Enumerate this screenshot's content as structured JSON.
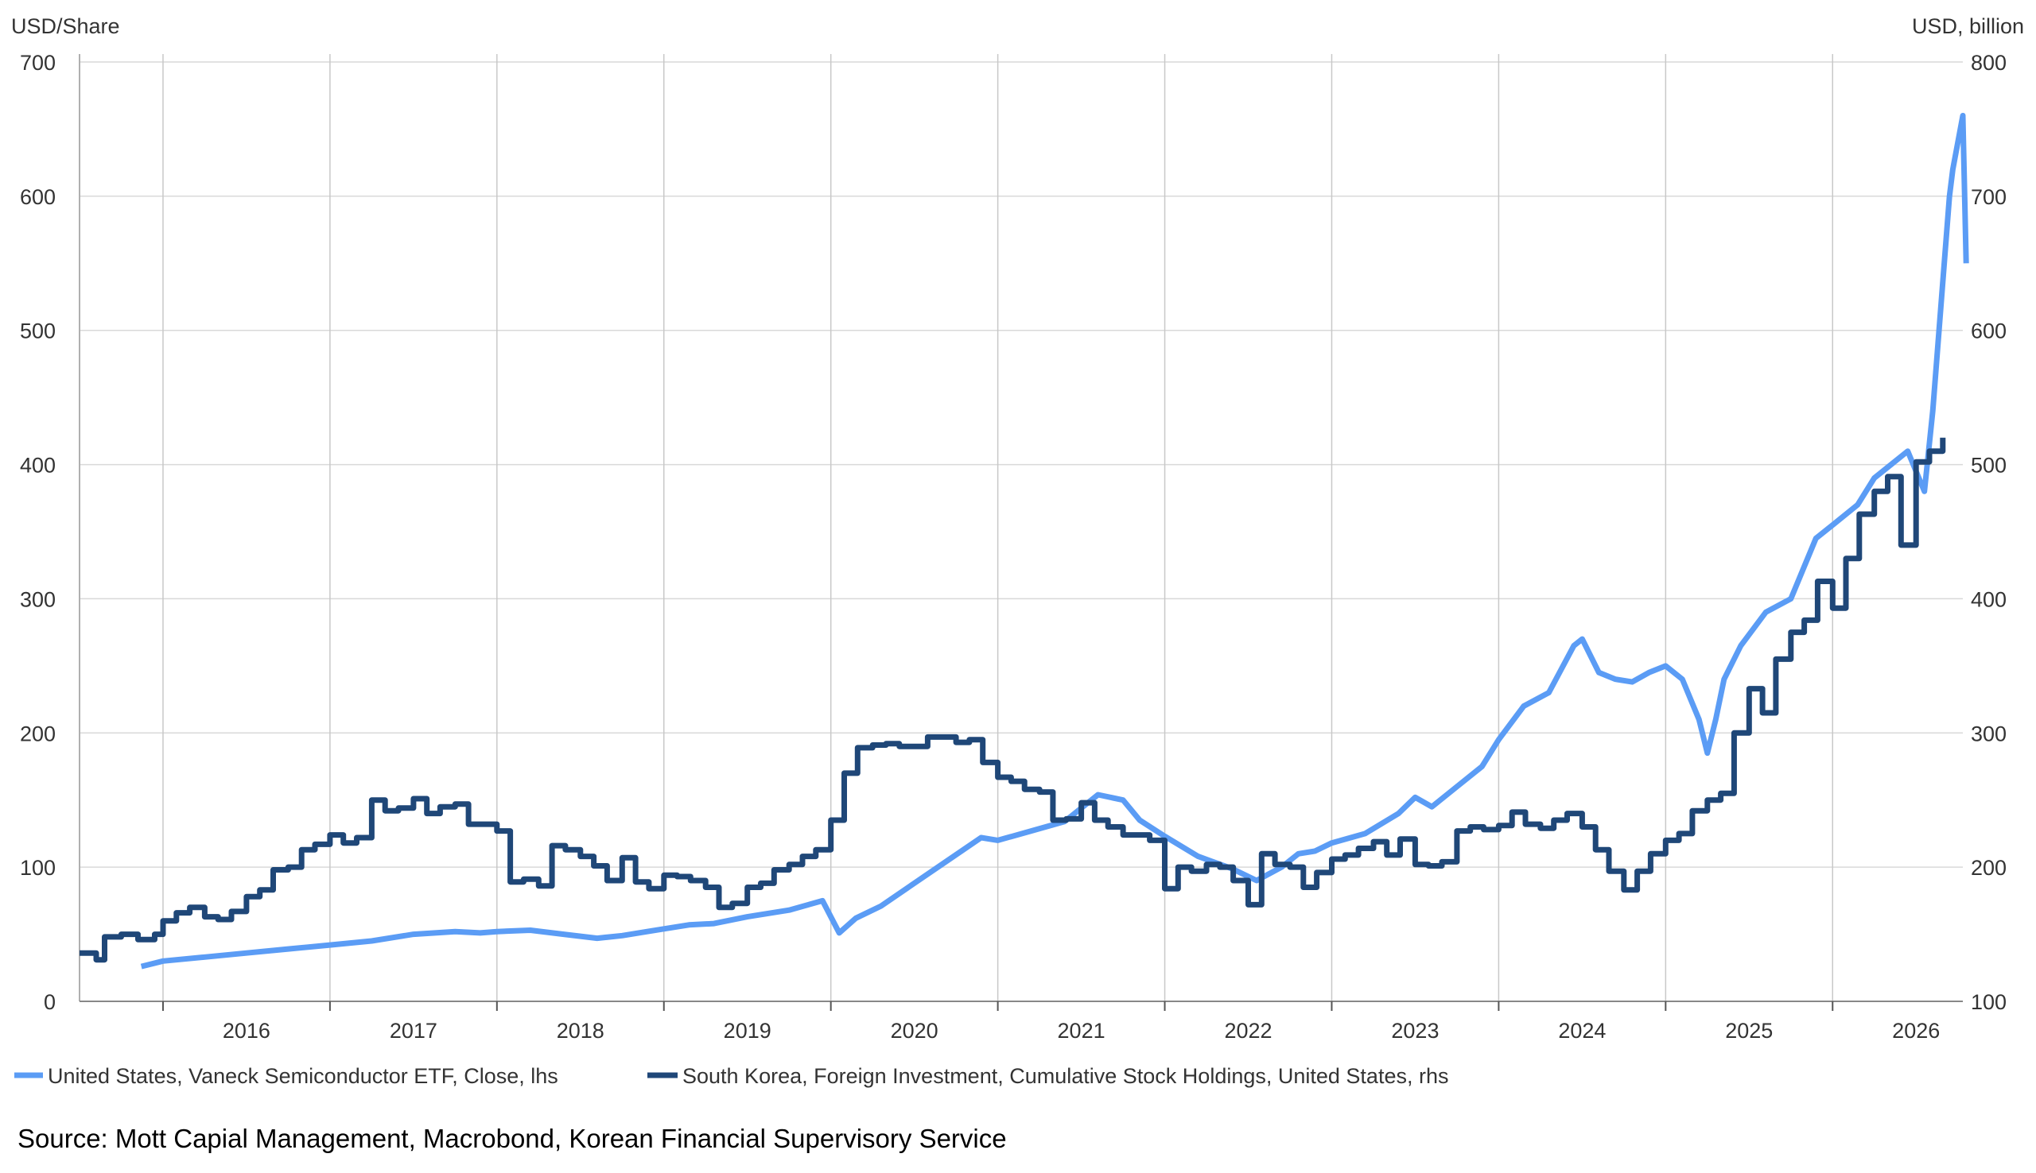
{
  "chart_data": {
    "type": "line",
    "left_axis_label": "USD/Share",
    "right_axis_label": "USD, billion",
    "left_ylim": [
      0,
      700
    ],
    "right_ylim": [
      100,
      800
    ],
    "left_ticks": [
      0,
      100,
      200,
      300,
      400,
      500,
      600,
      700
    ],
    "right_ticks": [
      100,
      200,
      300,
      400,
      500,
      600,
      700,
      800
    ],
    "x_range": [
      2015.5,
      2026.78
    ],
    "x_year_labels": [
      "2016",
      "2017",
      "2018",
      "2019",
      "2020",
      "2021",
      "2022",
      "2023",
      "2024",
      "2025",
      "2026"
    ],
    "grid": true,
    "legend_placement": "bottom",
    "source": "Source: Mott Capial Management, Macrobond, Korean Financial Supervisory Service",
    "series": [
      {
        "name": "United States, Vaneck Semiconductor ETF, Close, lhs",
        "axis": "left",
        "color": "#5b9cf5",
        "x": [
          2015.87,
          2016.0,
          2016.25,
          2016.5,
          2016.75,
          2017.0,
          2017.25,
          2017.5,
          2017.75,
          2017.9,
          2018.0,
          2018.2,
          2018.4,
          2018.6,
          2018.75,
          2018.9,
          2019.0,
          2019.15,
          2019.3,
          2019.5,
          2019.75,
          2019.95,
          2020.05,
          2020.15,
          2020.3,
          2020.5,
          2020.7,
          2020.9,
          2021.0,
          2021.2,
          2021.4,
          2021.6,
          2021.75,
          2021.85,
          2022.0,
          2022.2,
          2022.4,
          2022.55,
          2022.7,
          2022.8,
          2022.9,
          2023.0,
          2023.2,
          2023.4,
          2023.5,
          2023.6,
          2023.75,
          2023.9,
          2024.0,
          2024.15,
          2024.3,
          2024.45,
          2024.5,
          2024.6,
          2024.7,
          2024.8,
          2024.9,
          2025.0,
          2025.1,
          2025.2,
          2025.25,
          2025.3,
          2025.35,
          2025.45,
          2025.6,
          2025.75,
          2025.9,
          2026.0,
          2026.15,
          2026.25,
          2026.35,
          2026.45,
          2026.5,
          2026.55,
          2026.6,
          2026.65,
          2026.7,
          2026.72,
          2026.78,
          2026.8
        ],
        "values": [
          26,
          30,
          33,
          36,
          39,
          42,
          45,
          50,
          52,
          51,
          52,
          53,
          50,
          47,
          49,
          52,
          54,
          57,
          58,
          63,
          68,
          75,
          51,
          62,
          71,
          88,
          105,
          122,
          120,
          127,
          134,
          154,
          150,
          135,
          123,
          108,
          99,
          90,
          100,
          110,
          112,
          118,
          125,
          140,
          152,
          145,
          160,
          175,
          195,
          220,
          230,
          265,
          270,
          245,
          240,
          238,
          245,
          250,
          240,
          210,
          185,
          210,
          240,
          265,
          290,
          300,
          345,
          355,
          370,
          390,
          400,
          410,
          395,
          380,
          440,
          520,
          600,
          620,
          660,
          550
        ]
      },
      {
        "name": "South Korea, Foreign Investment, Cumulative Stock Holdings, United States, rhs",
        "axis": "right",
        "color": "#1f4778",
        "step": true,
        "x": [
          2015.5,
          2015.6,
          2015.65,
          2015.75,
          2015.85,
          2015.95,
          2016.0,
          2016.08,
          2016.16,
          2016.25,
          2016.33,
          2016.41,
          2016.5,
          2016.58,
          2016.66,
          2016.75,
          2016.83,
          2016.91,
          2017.0,
          2017.08,
          2017.16,
          2017.25,
          2017.33,
          2017.41,
          2017.5,
          2017.58,
          2017.66,
          2017.75,
          2017.83,
          2017.91,
          2018.0,
          2018.08,
          2018.16,
          2018.25,
          2018.33,
          2018.41,
          2018.5,
          2018.58,
          2018.66,
          2018.75,
          2018.83,
          2018.91,
          2019.0,
          2019.08,
          2019.16,
          2019.25,
          2019.33,
          2019.41,
          2019.5,
          2019.58,
          2019.66,
          2019.75,
          2019.83,
          2019.91,
          2020.0,
          2020.08,
          2020.16,
          2020.25,
          2020.33,
          2020.41,
          2020.5,
          2020.58,
          2020.66,
          2020.75,
          2020.83,
          2020.91,
          2021.0,
          2021.08,
          2021.16,
          2021.25,
          2021.33,
          2021.41,
          2021.5,
          2021.58,
          2021.66,
          2021.75,
          2021.83,
          2021.91,
          2022.0,
          2022.08,
          2022.16,
          2022.25,
          2022.33,
          2022.41,
          2022.5,
          2022.58,
          2022.66,
          2022.75,
          2022.83,
          2022.91,
          2023.0,
          2023.08,
          2023.16,
          2023.25,
          2023.33,
          2023.41,
          2023.5,
          2023.58,
          2023.66,
          2023.75,
          2023.83,
          2023.91,
          2024.0,
          2024.08,
          2024.16,
          2024.25,
          2024.33,
          2024.41,
          2024.5,
          2024.58,
          2024.66,
          2024.75,
          2024.83,
          2024.91,
          2025.0,
          2025.08,
          2025.16,
          2025.25,
          2025.33,
          2025.41,
          2025.5,
          2025.58,
          2025.66,
          2025.75,
          2025.83,
          2025.91,
          2026.0,
          2026.08,
          2026.16,
          2026.25,
          2026.33,
          2026.41,
          2026.5,
          2026.58,
          2026.66
        ],
        "values": [
          136,
          131,
          148,
          150,
          146,
          150,
          160,
          166,
          170,
          163,
          161,
          167,
          178,
          183,
          198,
          200,
          213,
          217,
          224,
          218,
          222,
          250,
          242,
          244,
          251,
          240,
          245,
          247,
          232,
          232,
          227,
          189,
          191,
          186,
          216,
          213,
          208,
          201,
          190,
          207,
          189,
          184,
          194,
          193,
          190,
          185,
          170,
          173,
          185,
          188,
          198,
          202,
          208,
          213,
          235,
          270,
          289,
          291,
          292,
          290,
          290,
          297,
          297,
          293,
          295,
          278,
          267,
          264,
          258,
          256,
          235,
          236,
          248,
          235,
          230,
          224,
          224,
          220,
          184,
          200,
          197,
          202,
          200,
          190,
          172,
          210,
          202,
          200,
          185,
          196,
          206,
          209,
          214,
          219,
          209,
          221,
          202,
          201,
          204,
          227,
          230,
          228,
          231,
          241,
          232,
          229,
          235,
          240,
          230,
          213,
          197,
          183,
          197,
          210,
          220,
          225,
          242,
          250,
          255,
          300,
          333,
          315,
          355,
          375,
          384,
          413,
          393,
          430,
          463,
          480,
          491,
          440,
          502,
          510,
          520
        ]
      }
    ]
  }
}
